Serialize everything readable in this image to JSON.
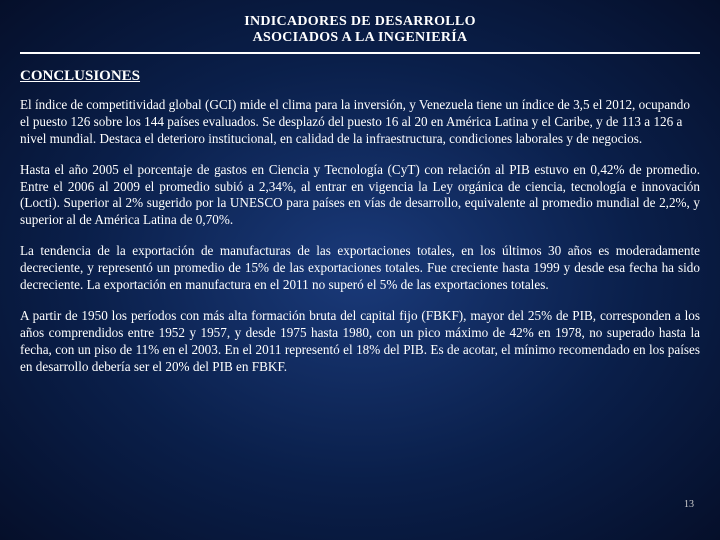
{
  "header": {
    "line1": "INDICADORES DE DESARROLLO",
    "line2": "ASOCIADOS A LA INGENIERÍA"
  },
  "section_title": "CONCLUSIONES",
  "paragraphs": [
    "El índice de competitividad global (GCI) mide el clima para la inversión, y Venezuela tiene un índice de 3,5 el 2012, ocupando el puesto 126 sobre los 144 países evaluados. Se desplazó del puesto 16 al 20 en América Latina y el Caribe, y de 113 a 126 a nivel mundial. Destaca el deterioro institucional, en calidad de la infraestructura, condiciones laborales y de negocios.",
    "Hasta el año 2005 el porcentaje de gastos en Ciencia y Tecnología (CyT) con relación al PIB estuvo en 0,42% de promedio. Entre el 2006 al 2009 el promedio subió a 2,34%, al entrar en vigencia la Ley orgánica de ciencia, tecnología e innovación (Locti). Superior al 2% sugerido por la UNESCO para países en vías de desarrollo, equivalente al promedio mundial de 2,2%, y superior al de América Latina de 0,70%.",
    "La tendencia de la exportación de manufacturas de las exportaciones totales, en los últimos 30 años es moderadamente decreciente, y representó un promedio de 15% de las exportaciones totales. Fue creciente hasta 1999 y desde esa fecha ha sido decreciente. La exportación en manufactura en el 2011 no superó el 5% de las exportaciones totales.",
    "A partir de 1950 los períodos con más alta formación bruta del capital fijo (FBKF), mayor del 25% de PIB, corresponden a los años comprendidos entre 1952 y 1957, y desde 1975 hasta 1980, con un pico máximo de 42% en 1978, no superado hasta la fecha, con un piso de 11% en el 2003. En el 2011 representó el 18% del PIB. Es de acotar, el mínimo recomendado en los países en desarrollo debería ser el 20% del PIB en FBKF."
  ],
  "page_number": "13",
  "colors": {
    "text": "#ffffff",
    "bg_center": "#1a3a7a",
    "bg_mid": "#0a1f4a",
    "bg_edge": "#050f2a",
    "rule": "#ffffff"
  },
  "typography": {
    "header_fontsize": 14,
    "title_fontsize": 15,
    "body_fontsize": 13.2,
    "page_num_fontsize": 10,
    "font_family": "Georgia, Times New Roman, serif"
  }
}
